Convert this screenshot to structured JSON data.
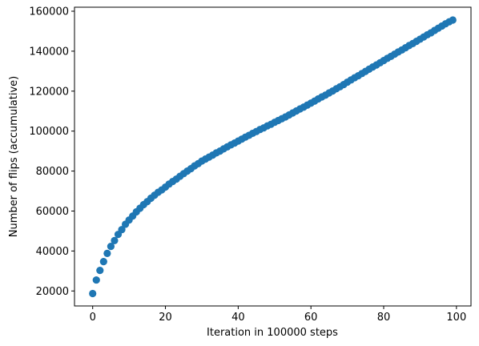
{
  "chart_data": {
    "type": "scatter",
    "xlabel": "Iteration in 100000 steps",
    "ylabel": "Number of flips (accumulative)",
    "xlim": [
      -5,
      104
    ],
    "ylim": [
      12500,
      162000
    ],
    "xticks": [
      0,
      20,
      40,
      60,
      80,
      100
    ],
    "yticks": [
      20000,
      40000,
      60000,
      80000,
      100000,
      120000,
      140000,
      160000
    ],
    "grid": false,
    "marker_color": "#1f77b4",
    "x": [
      0,
      1,
      2,
      3,
      4,
      5,
      6,
      7,
      8,
      9,
      10,
      11,
      12,
      13,
      14,
      15,
      16,
      17,
      18,
      19,
      20,
      21,
      22,
      23,
      24,
      25,
      26,
      27,
      28,
      29,
      30,
      31,
      32,
      33,
      34,
      35,
      36,
      37,
      38,
      39,
      40,
      41,
      42,
      43,
      44,
      45,
      46,
      47,
      48,
      49,
      50,
      51,
      52,
      53,
      54,
      55,
      56,
      57,
      58,
      59,
      60,
      61,
      62,
      63,
      64,
      65,
      66,
      67,
      68,
      69,
      70,
      71,
      72,
      73,
      74,
      75,
      76,
      77,
      78,
      79,
      80,
      81,
      82,
      83,
      84,
      85,
      86,
      87,
      88,
      89,
      90,
      91,
      92,
      93,
      94,
      95,
      96,
      97,
      98,
      99
    ],
    "y": [
      18700,
      25500,
      30300,
      34700,
      38800,
      42300,
      45200,
      48300,
      50700,
      53400,
      55500,
      57500,
      59600,
      61400,
      63200,
      64700,
      66400,
      67900,
      69400,
      70600,
      72000,
      73500,
      74800,
      76000,
      77400,
      78700,
      80000,
      81200,
      82600,
      83700,
      85000,
      86000,
      87000,
      88000,
      89100,
      90000,
      91100,
      92100,
      93100,
      94000,
      95000,
      96000,
      97000,
      97900,
      98900,
      99800,
      100800,
      101600,
      102600,
      103400,
      104400,
      105300,
      106200,
      107100,
      108100,
      109100,
      110100,
      111100,
      112000,
      113000,
      114000,
      115000,
      116100,
      117100,
      118000,
      119100,
      120100,
      121200,
      122200,
      123300,
      124500,
      125600,
      126700,
      127700,
      128800,
      129900,
      131000,
      132100,
      133100,
      134200,
      135300,
      136400,
      137400,
      138500,
      139600,
      140600,
      141700,
      142800,
      143800,
      144900,
      146000,
      147100,
      148200,
      149200,
      150400,
      151500,
      152600,
      153700,
      154700,
      155600
    ]
  }
}
